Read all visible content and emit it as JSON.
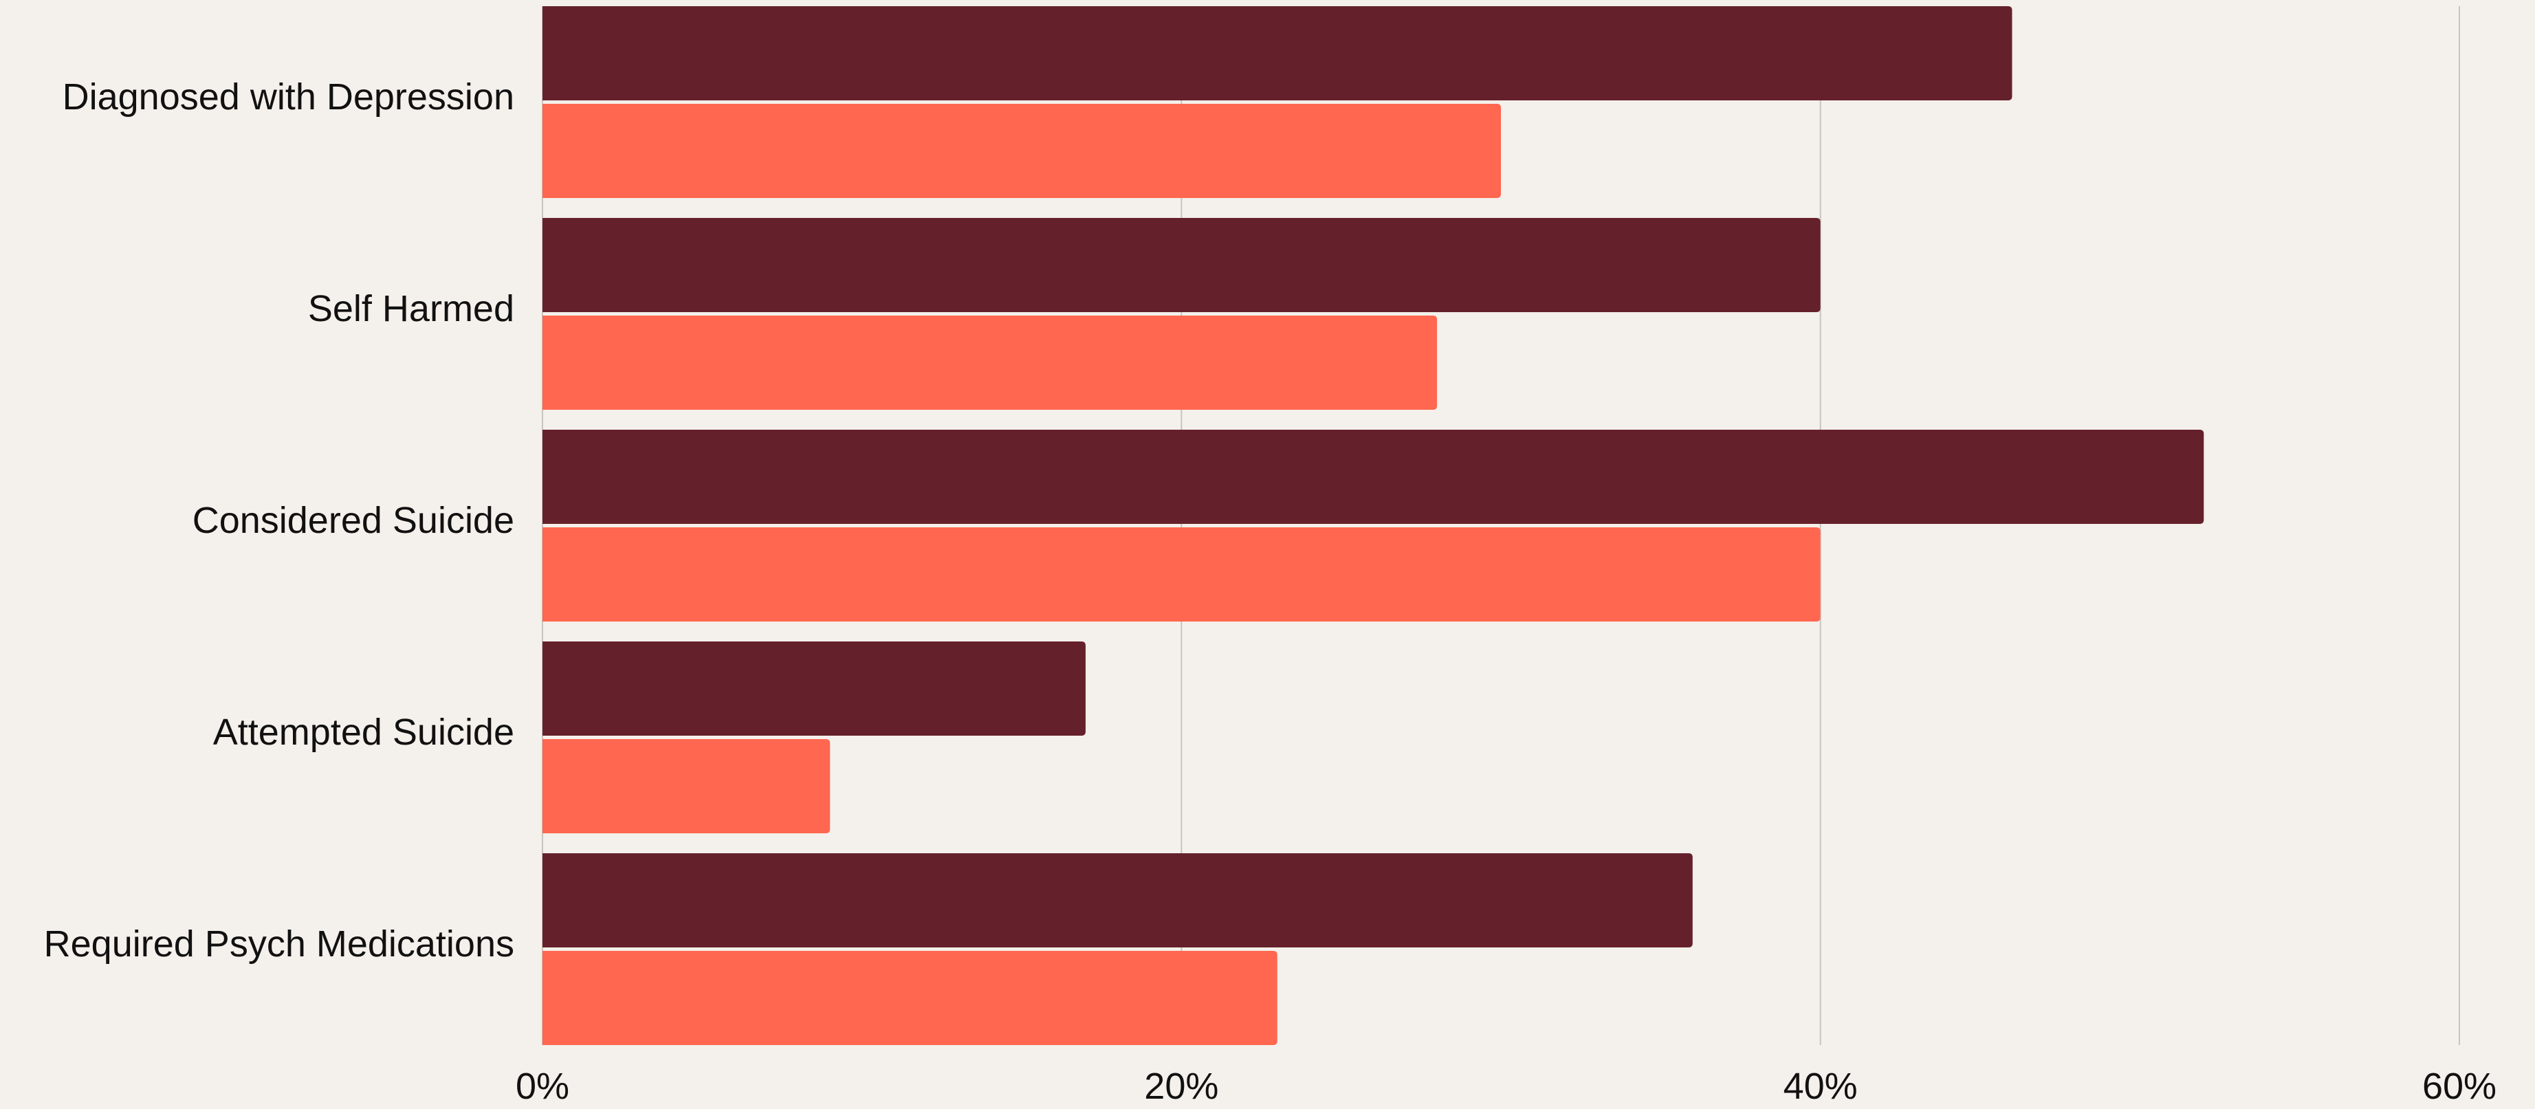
{
  "chart_data": {
    "type": "bar",
    "orientation": "horizontal",
    "categories": [
      "Diagnosed with Depression",
      "Self Harmed",
      "Considered Suicide",
      "Attempted Suicide",
      "Required Psych Medications"
    ],
    "series": [
      {
        "values": [
          46,
          40,
          52,
          17,
          36
        ],
        "color": "#65212b"
      },
      {
        "values": [
          30,
          28,
          40,
          9,
          23
        ],
        "color": "#ff6750"
      }
    ],
    "x_ticks": [
      "0%",
      "20%",
      "40%",
      "60%"
    ],
    "x_tick_values": [
      0,
      20,
      40,
      60
    ],
    "xlim": [
      0,
      60
    ],
    "grid": "vertical",
    "legend": "none",
    "background": "#f4f0eb",
    "gridline_color": "#c8c4bf"
  }
}
